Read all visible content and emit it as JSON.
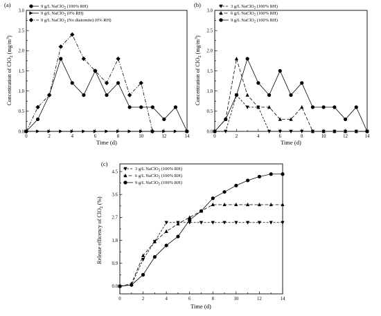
{
  "chart_data": [
    {
      "id": "a",
      "panel_label": "(a)",
      "type": "line",
      "title": "",
      "xlabel": "Time (d)",
      "ylabel": "Concentration of ClO",
      "ylabel_sub": "2",
      "ylabel_tail": " (mg/m",
      "ylabel_sup": "3",
      "ylabel_end": ")",
      "xlim": [
        0,
        14
      ],
      "ylim": [
        0,
        3.0
      ],
      "xticks": [
        0,
        2,
        4,
        6,
        8,
        10,
        12,
        14
      ],
      "yticks": [
        0.0,
        0.5,
        1.0,
        1.5,
        2.0,
        2.5,
        3.0
      ],
      "ytick_labels": [
        "0.0",
        "0.5",
        "1.0",
        "1.5",
        "2.0",
        "2.5",
        "3.0"
      ],
      "grid": false,
      "legend_position": "top-left",
      "series": [
        {
          "name": "9 g/L NaClO2 (100% RH)",
          "marker": "circle",
          "dash": "none",
          "points": [
            [
              0,
              0
            ],
            [
              1,
              0.3
            ],
            [
              2,
              0.9
            ],
            [
              3,
              1.8
            ],
            [
              4,
              1.2
            ],
            [
              5,
              0.9
            ],
            [
              6,
              1.5
            ],
            [
              7,
              0.9
            ],
            [
              8,
              1.2
            ],
            [
              9,
              0.6
            ],
            [
              10,
              0.6
            ],
            [
              11,
              0.6
            ],
            [
              12,
              0.3
            ],
            [
              13,
              0.6
            ],
            [
              14,
              0
            ]
          ]
        },
        {
          "name": "9 g/L NaClO2 (0% RH)",
          "marker": "triangle-right",
          "dash": "none",
          "points": [
            [
              0,
              0
            ],
            [
              1,
              0
            ],
            [
              2,
              0
            ],
            [
              3,
              0
            ],
            [
              4,
              0
            ],
            [
              5,
              0
            ],
            [
              6,
              0
            ],
            [
              7,
              0
            ],
            [
              8,
              0
            ],
            [
              9,
              0
            ],
            [
              10,
              0
            ],
            [
              11,
              0
            ],
            [
              12,
              0
            ],
            [
              13,
              0
            ],
            [
              14,
              0
            ]
          ]
        },
        {
          "name": "9 g/L NaClO2 (No diatomite) (0% RH)",
          "marker": "diamond",
          "dash": "dashdot",
          "points": [
            [
              0,
              0
            ],
            [
              1,
              0.6
            ],
            [
              2,
              0.9
            ],
            [
              3,
              2.1
            ],
            [
              4,
              2.4
            ],
            [
              5,
              1.8
            ],
            [
              6,
              1.5
            ],
            [
              7,
              1.2
            ],
            [
              8,
              1.8
            ],
            [
              9,
              0.9
            ],
            [
              10,
              1.2
            ],
            [
              11,
              0
            ]
          ]
        }
      ]
    },
    {
      "id": "b",
      "panel_label": "(b)",
      "type": "line",
      "title": "",
      "xlabel": "Time (d)",
      "ylabel": "Concentration of ClO",
      "ylabel_sub": "2",
      "ylabel_tail": " (mg/m",
      "ylabel_sup": "3",
      "ylabel_end": ")",
      "xlim": [
        0,
        14
      ],
      "ylim": [
        0,
        3.0
      ],
      "xticks": [
        0,
        2,
        4,
        6,
        8,
        10,
        12,
        14
      ],
      "yticks": [
        0.0,
        0.5,
        1.0,
        1.5,
        2.0,
        2.5,
        3.0
      ],
      "ytick_labels": [
        "0.0",
        "0.5",
        "1.0",
        "1.5",
        "2.0",
        "2.5",
        "3.0"
      ],
      "grid": false,
      "legend_position": "top-left",
      "series": [
        {
          "name": "3 g/L NaClO2 (100% RH)",
          "marker": "triangle-down",
          "dash": "short",
          "points": [
            [
              0,
              0
            ],
            [
              1,
              0
            ],
            [
              2,
              0.9
            ],
            [
              3,
              0.6
            ],
            [
              4,
              0.6
            ],
            [
              5,
              0
            ],
            [
              6,
              0
            ],
            [
              7,
              0
            ],
            [
              8,
              0
            ],
            [
              9,
              0
            ],
            [
              10,
              0
            ],
            [
              11,
              0
            ],
            [
              12,
              0
            ],
            [
              13,
              0
            ],
            [
              14,
              0
            ]
          ]
        },
        {
          "name": "6 g/L NaClO2 (100% RH)",
          "marker": "triangle-up",
          "dash": "long",
          "points": [
            [
              0,
              0
            ],
            [
              1,
              0.3
            ],
            [
              2,
              1.8
            ],
            [
              3,
              0.9
            ],
            [
              4,
              0.6
            ],
            [
              5,
              0.6
            ],
            [
              6,
              0.3
            ],
            [
              7,
              0.3
            ],
            [
              8,
              0.6
            ],
            [
              9,
              0
            ],
            [
              10,
              0
            ],
            [
              11,
              0
            ],
            [
              12,
              0
            ],
            [
              13,
              0
            ],
            [
              14,
              0
            ]
          ]
        },
        {
          "name": "9 g/L NaClO2 (100% RH)",
          "marker": "circle",
          "dash": "none",
          "points": [
            [
              0,
              0
            ],
            [
              1,
              0.3
            ],
            [
              2,
              0.9
            ],
            [
              3,
              1.8
            ],
            [
              4,
              1.2
            ],
            [
              5,
              0.9
            ],
            [
              6,
              1.5
            ],
            [
              7,
              0.9
            ],
            [
              8,
              1.2
            ],
            [
              9,
              0.6
            ],
            [
              10,
              0.6
            ],
            [
              11,
              0.6
            ],
            [
              12,
              0.3
            ],
            [
              13,
              0.6
            ],
            [
              14,
              0
            ]
          ]
        }
      ]
    },
    {
      "id": "c",
      "panel_label": "(c)",
      "type": "line",
      "title": "",
      "xlabel": "Time (d)",
      "ylabel": "Release efficency of ClO",
      "ylabel_sub": "2",
      "ylabel_tail": " (%)",
      "ylabel_sup": "",
      "ylabel_end": "",
      "xlim": [
        0,
        14
      ],
      "ylim": [
        -0.3,
        4.8
      ],
      "xticks": [
        0,
        2,
        4,
        6,
        8,
        10,
        12,
        14
      ],
      "yticks": [
        0.0,
        0.9,
        1.8,
        2.7,
        3.6,
        4.5
      ],
      "ytick_labels": [
        "0.0",
        "0.9",
        "1.8",
        "2.7",
        "3.6",
        "4.5"
      ],
      "grid": false,
      "legend_position": "top-left",
      "series": [
        {
          "name": "3 g/L NaClO2 (100% RH)",
          "marker": "triangle-down",
          "dash": "short",
          "points": [
            [
              0,
              0
            ],
            [
              1,
              0.05
            ],
            [
              2,
              1.05
            ],
            [
              3,
              1.75
            ],
            [
              4,
              2.5
            ],
            [
              5,
              2.5
            ],
            [
              6,
              2.5
            ],
            [
              7,
              2.5
            ],
            [
              8,
              2.5
            ],
            [
              9,
              2.5
            ],
            [
              10,
              2.5
            ],
            [
              11,
              2.5
            ],
            [
              12,
              2.5
            ],
            [
              13,
              2.5
            ],
            [
              14,
              2.5
            ]
          ]
        },
        {
          "name": "6 g/L NaClO2 (100% RH)",
          "marker": "triangle-up",
          "dash": "long",
          "points": [
            [
              0,
              0
            ],
            [
              1,
              0.1
            ],
            [
              2,
              1.2
            ],
            [
              3,
              1.75
            ],
            [
              4,
              2.15
            ],
            [
              5,
              2.45
            ],
            [
              6,
              2.7
            ],
            [
              7,
              2.95
            ],
            [
              8,
              3.2
            ],
            [
              9,
              3.2
            ],
            [
              10,
              3.2
            ],
            [
              11,
              3.2
            ],
            [
              12,
              3.2
            ],
            [
              13,
              3.2
            ],
            [
              14,
              3.2
            ]
          ]
        },
        {
          "name": "9 g/L NaClO2 (100% RH)",
          "marker": "circle",
          "dash": "none",
          "points": [
            [
              0,
              0
            ],
            [
              1,
              0.05
            ],
            [
              2,
              0.45
            ],
            [
              3,
              1.15
            ],
            [
              4,
              1.6
            ],
            [
              5,
              1.95
            ],
            [
              6,
              2.6
            ],
            [
              7,
              2.95
            ],
            [
              8,
              3.45
            ],
            [
              9,
              3.7
            ],
            [
              10,
              3.95
            ],
            [
              11,
              4.15
            ],
            [
              12,
              4.3
            ],
            [
              13,
              4.4
            ],
            [
              14,
              4.4
            ]
          ]
        }
      ]
    }
  ]
}
